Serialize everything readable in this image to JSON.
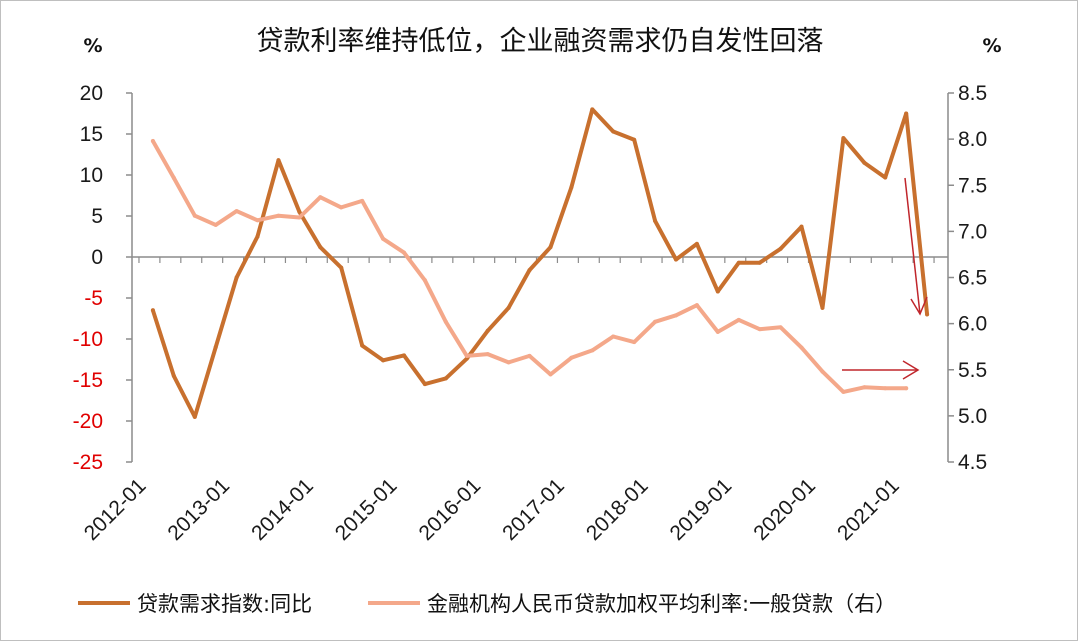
{
  "chart_data": {
    "type": "line",
    "title": "贷款利率维持低位，企业融资需求仍自发性回落",
    "left_unit": "%",
    "right_unit": "%",
    "x_tick_labels": [
      "2012-01",
      "2013-01",
      "2014-01",
      "2015-01",
      "2016-01",
      "2017-01",
      "2018-01",
      "2019-01",
      "2020-01",
      "2021-01"
    ],
    "y_left": {
      "ylim": [
        -25,
        20
      ],
      "ticks": [
        20,
        15,
        10,
        5,
        0,
        -5,
        -10,
        -15,
        -20,
        -25
      ]
    },
    "y_right": {
      "ylim": [
        4.5,
        8.5
      ],
      "ticks": [
        "8.5",
        "8.0",
        "7.5",
        "7.0",
        "6.5",
        "6.0",
        "5.5",
        "5.0",
        "4.5"
      ]
    },
    "series": [
      {
        "name": "贷款需求指数:同比",
        "axis": "left",
        "color": "#c8702e",
        "points": [
          [
            "2012-03",
            -6.5
          ],
          [
            "2012-06",
            -14.5
          ],
          [
            "2012-09",
            -19.5
          ],
          [
            "2012-12",
            -11.0
          ],
          [
            "2013-03",
            -2.5
          ],
          [
            "2013-06",
            2.5
          ],
          [
            "2013-09",
            11.8
          ],
          [
            "2013-12",
            5.5
          ],
          [
            "2014-03",
            1.2
          ],
          [
            "2014-06",
            -1.3
          ],
          [
            "2014-09",
            -10.8
          ],
          [
            "2014-12",
            -12.6
          ],
          [
            "2015-03",
            -12.0
          ],
          [
            "2015-06",
            -15.5
          ],
          [
            "2015-09",
            -14.8
          ],
          [
            "2015-12",
            -12.4
          ],
          [
            "2016-03",
            -9.0
          ],
          [
            "2016-06",
            -6.2
          ],
          [
            "2016-09",
            -1.6
          ],
          [
            "2016-12",
            1.2
          ],
          [
            "2017-03",
            8.5
          ],
          [
            "2017-06",
            18.0
          ],
          [
            "2017-09",
            15.3
          ],
          [
            "2017-12",
            14.3
          ],
          [
            "2018-03",
            4.4
          ],
          [
            "2018-06",
            -0.3
          ],
          [
            "2018-09",
            1.6
          ],
          [
            "2018-12",
            -4.2
          ],
          [
            "2019-03",
            -0.7
          ],
          [
            "2019-06",
            -0.7
          ],
          [
            "2019-09",
            1.0
          ],
          [
            "2019-12",
            3.7
          ],
          [
            "2020-03",
            -6.2
          ],
          [
            "2020-06",
            14.5
          ],
          [
            "2020-09",
            11.5
          ],
          [
            "2020-12",
            9.7
          ],
          [
            "2021-03",
            17.5
          ],
          [
            "2021-06",
            -7.0
          ]
        ]
      },
      {
        "name": "金融机构人民币贷款加权平均利率:一般贷款（右）",
        "axis": "right",
        "color": "#f4a88a",
        "points": [
          [
            "2012-03",
            7.98
          ],
          [
            "2012-06",
            7.58
          ],
          [
            "2012-09",
            7.17
          ],
          [
            "2012-12",
            7.07
          ],
          [
            "2013-03",
            7.22
          ],
          [
            "2013-06",
            7.12
          ],
          [
            "2013-09",
            7.17
          ],
          [
            "2013-12",
            7.15
          ],
          [
            "2014-03",
            7.37
          ],
          [
            "2014-06",
            7.26
          ],
          [
            "2014-09",
            7.33
          ],
          [
            "2014-12",
            6.92
          ],
          [
            "2015-03",
            6.77
          ],
          [
            "2015-06",
            6.47
          ],
          [
            "2015-09",
            6.02
          ],
          [
            "2015-12",
            5.65
          ],
          [
            "2016-03",
            5.67
          ],
          [
            "2016-06",
            5.58
          ],
          [
            "2016-09",
            5.65
          ],
          [
            "2016-12",
            5.45
          ],
          [
            "2017-03",
            5.63
          ],
          [
            "2017-06",
            5.71
          ],
          [
            "2017-09",
            5.86
          ],
          [
            "2017-12",
            5.8
          ],
          [
            "2018-03",
            6.02
          ],
          [
            "2018-06",
            6.09
          ],
          [
            "2018-09",
            6.2
          ],
          [
            "2018-12",
            5.91
          ],
          [
            "2019-03",
            6.04
          ],
          [
            "2019-06",
            5.94
          ],
          [
            "2019-09",
            5.96
          ],
          [
            "2019-12",
            5.74
          ],
          [
            "2020-03",
            5.48
          ],
          [
            "2020-06",
            5.26
          ],
          [
            "2020-09",
            5.31
          ],
          [
            "2020-12",
            5.3
          ],
          [
            "2021-03",
            5.3
          ]
        ]
      }
    ],
    "legend_position": "bottom",
    "grid": false,
    "annotations": [
      {
        "type": "arrow",
        "direction": "down",
        "color": "#c0262c"
      },
      {
        "type": "arrow",
        "direction": "right",
        "color": "#c0262c"
      }
    ]
  }
}
